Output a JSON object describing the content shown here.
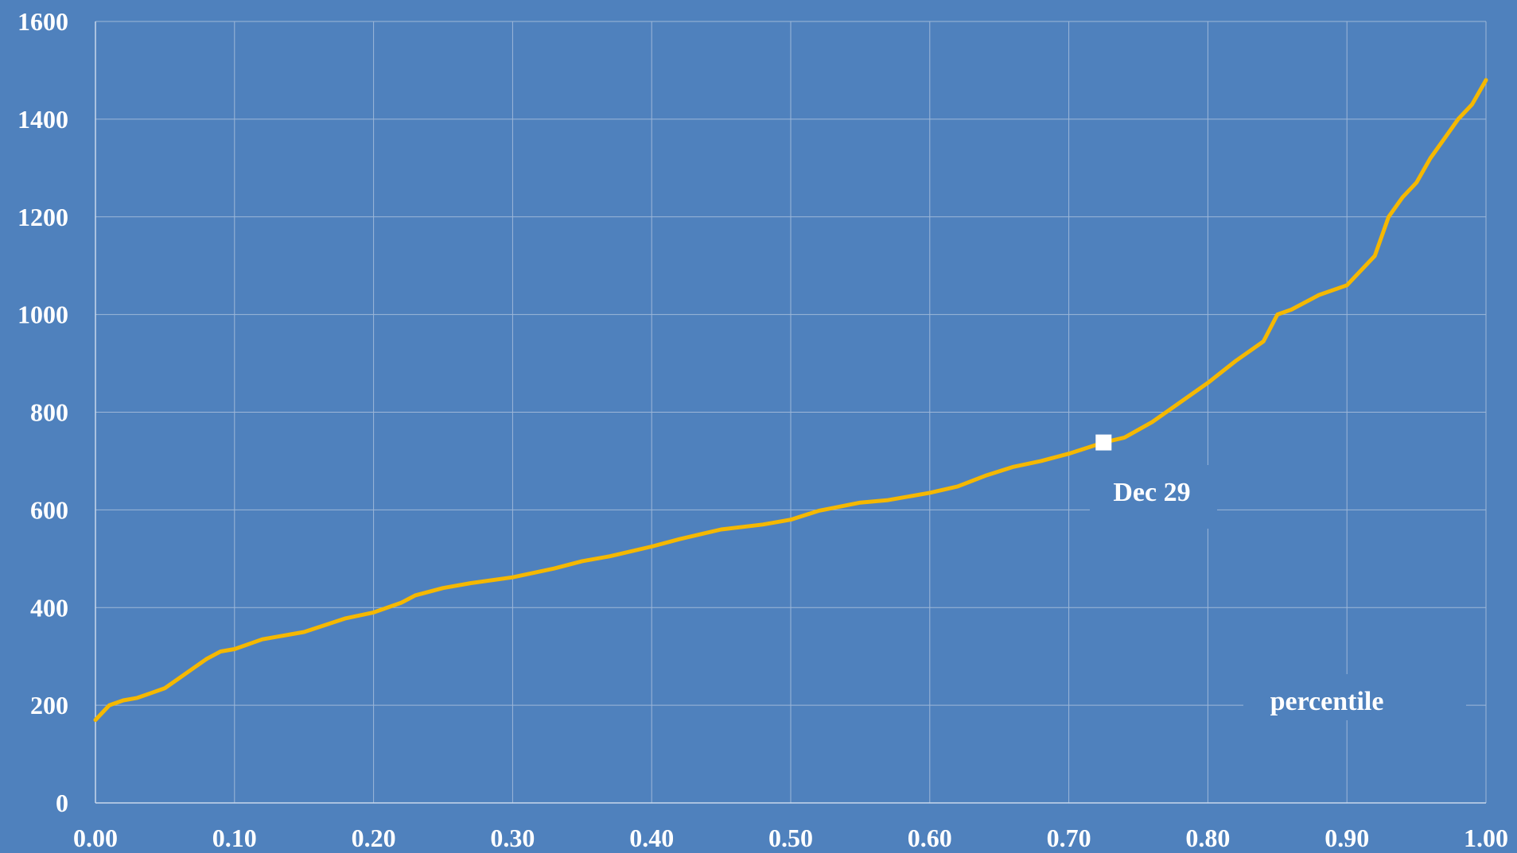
{
  "chart_data": {
    "type": "line",
    "title": "",
    "xlabel": "",
    "ylabel": "",
    "xlim": [
      0,
      1
    ],
    "ylim": [
      0,
      1600
    ],
    "x_ticks": [
      "0.00",
      "0.10",
      "0.20",
      "0.30",
      "0.40",
      "0.50",
      "0.60",
      "0.70",
      "0.80",
      "0.90",
      "1.00"
    ],
    "y_ticks": [
      "0",
      "200",
      "400",
      "600",
      "800",
      "1000",
      "1200",
      "1400",
      "1600"
    ],
    "grid": true,
    "colors": {
      "background": "#4f81bd",
      "grid": "#9db7d8",
      "axis": "#c9d8ec",
      "line": "#f5b800",
      "marker": "#ffffff",
      "text": "#ffffff"
    },
    "series": [
      {
        "x": [
          0.0,
          0.01,
          0.02,
          0.03,
          0.04,
          0.05,
          0.06,
          0.07,
          0.08,
          0.09,
          0.1,
          0.12,
          0.15,
          0.18,
          0.2,
          0.22,
          0.23,
          0.25,
          0.27,
          0.3,
          0.33,
          0.35,
          0.37,
          0.4,
          0.42,
          0.45,
          0.48,
          0.5,
          0.52,
          0.55,
          0.57,
          0.6,
          0.62,
          0.64,
          0.66,
          0.68,
          0.7,
          0.725,
          0.74,
          0.76,
          0.78,
          0.8,
          0.82,
          0.84,
          0.85,
          0.86,
          0.88,
          0.9,
          0.92,
          0.93,
          0.94,
          0.95,
          0.96,
          0.97,
          0.98,
          0.99,
          1.0
        ],
        "y": [
          170,
          200,
          210,
          215,
          225,
          235,
          255,
          275,
          295,
          310,
          315,
          335,
          350,
          378,
          390,
          410,
          425,
          440,
          450,
          462,
          480,
          495,
          505,
          525,
          540,
          560,
          570,
          580,
          598,
          615,
          620,
          635,
          648,
          670,
          688,
          700,
          715,
          738,
          748,
          780,
          820,
          860,
          905,
          945,
          1000,
          1010,
          1040,
          1060,
          1120,
          1200,
          1240,
          1270,
          1320,
          1360,
          1400,
          1430,
          1480
        ]
      }
    ],
    "annotations": [
      {
        "x": 0.725,
        "y": 738,
        "marker": "square",
        "text": "Dec 29"
      },
      {
        "text": "percentile"
      }
    ]
  }
}
